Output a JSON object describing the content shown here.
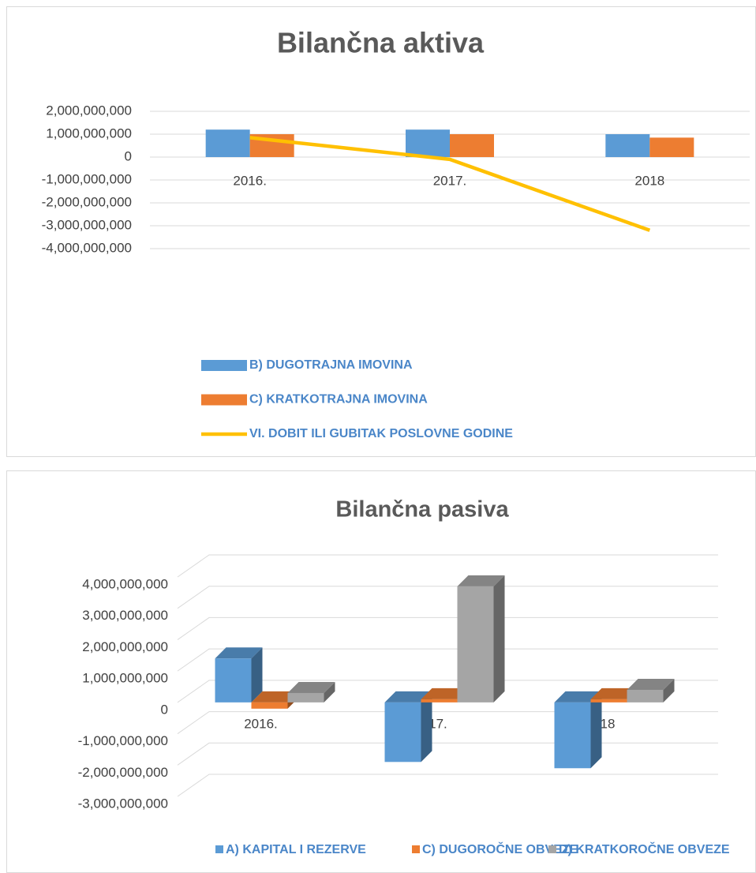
{
  "chart_data": [
    {
      "type": "bar",
      "title": "Bilančna aktiva",
      "categories": [
        "2016.",
        "2017.",
        "2018"
      ],
      "series": [
        {
          "name": "B) DUGOTRAJNA IMOVINA",
          "color": "#5b9bd5",
          "values": [
            1200000000,
            1200000000,
            1000000000
          ]
        },
        {
          "name": "C) KRATKOTRAJNA IMOVINA",
          "color": "#ed7d31",
          "values": [
            1000000000,
            1000000000,
            850000000
          ]
        },
        {
          "name": "VI. DOBIT ILI GUBITAK POSLOVNE GODINE",
          "color": "#ffc000",
          "type": "line",
          "values": [
            850000000,
            -100000000,
            -3200000000
          ]
        }
      ],
      "ylim": [
        -4000000000,
        2000000000
      ],
      "yticks": [
        {
          "value": 2000000000,
          "label": "2,000,000,000"
        },
        {
          "value": 1000000000,
          "label": "1,000,000,000"
        },
        0,
        {
          "value": -1000000000,
          "label": "-1,000,000,000"
        },
        {
          "value": -2000000000,
          "label": "-2,000,000,000"
        },
        {
          "value": -3000000000,
          "label": "-3,000,000,000"
        },
        {
          "value": -4000000000,
          "label": "-4,000,000,000"
        }
      ],
      "grid": true,
      "legend": "bottom"
    },
    {
      "type": "bar3d",
      "title": "Bilančna pasiva",
      "categories": [
        "2016.",
        "2017.",
        "2018"
      ],
      "series": [
        {
          "name": "A) KAPITAL I REZERVE",
          "color": "#5b9bd5",
          "values": [
            1400000000,
            -1900000000,
            -2100000000
          ]
        },
        {
          "name": "C) DUGOROČNE OBVEZE",
          "color": "#ed7d31",
          "values": [
            -200000000,
            100000000,
            100000000
          ]
        },
        {
          "name": "D) KRATKOROČNE OBVEZE",
          "color": "#a5a5a5",
          "values": [
            300000000,
            3700000000,
            400000000
          ]
        }
      ],
      "ylim": [
        -3000000000,
        4000000000
      ],
      "yticks": [
        {
          "value": 4000000000,
          "label": "4,000,000,000"
        },
        {
          "value": 3000000000,
          "label": "3,000,000,000"
        },
        {
          "value": 2000000000,
          "label": "2,000,000,000"
        },
        {
          "value": 1000000000,
          "label": "1,000,000,000"
        },
        0,
        {
          "value": -1000000000,
          "label": "-1,000,000,000"
        },
        {
          "value": -2000000000,
          "label": "-2,000,000,000"
        },
        {
          "value": -3000000000,
          "label": "-3,000,000,000"
        }
      ],
      "grid": true,
      "legend": "bottom"
    }
  ]
}
